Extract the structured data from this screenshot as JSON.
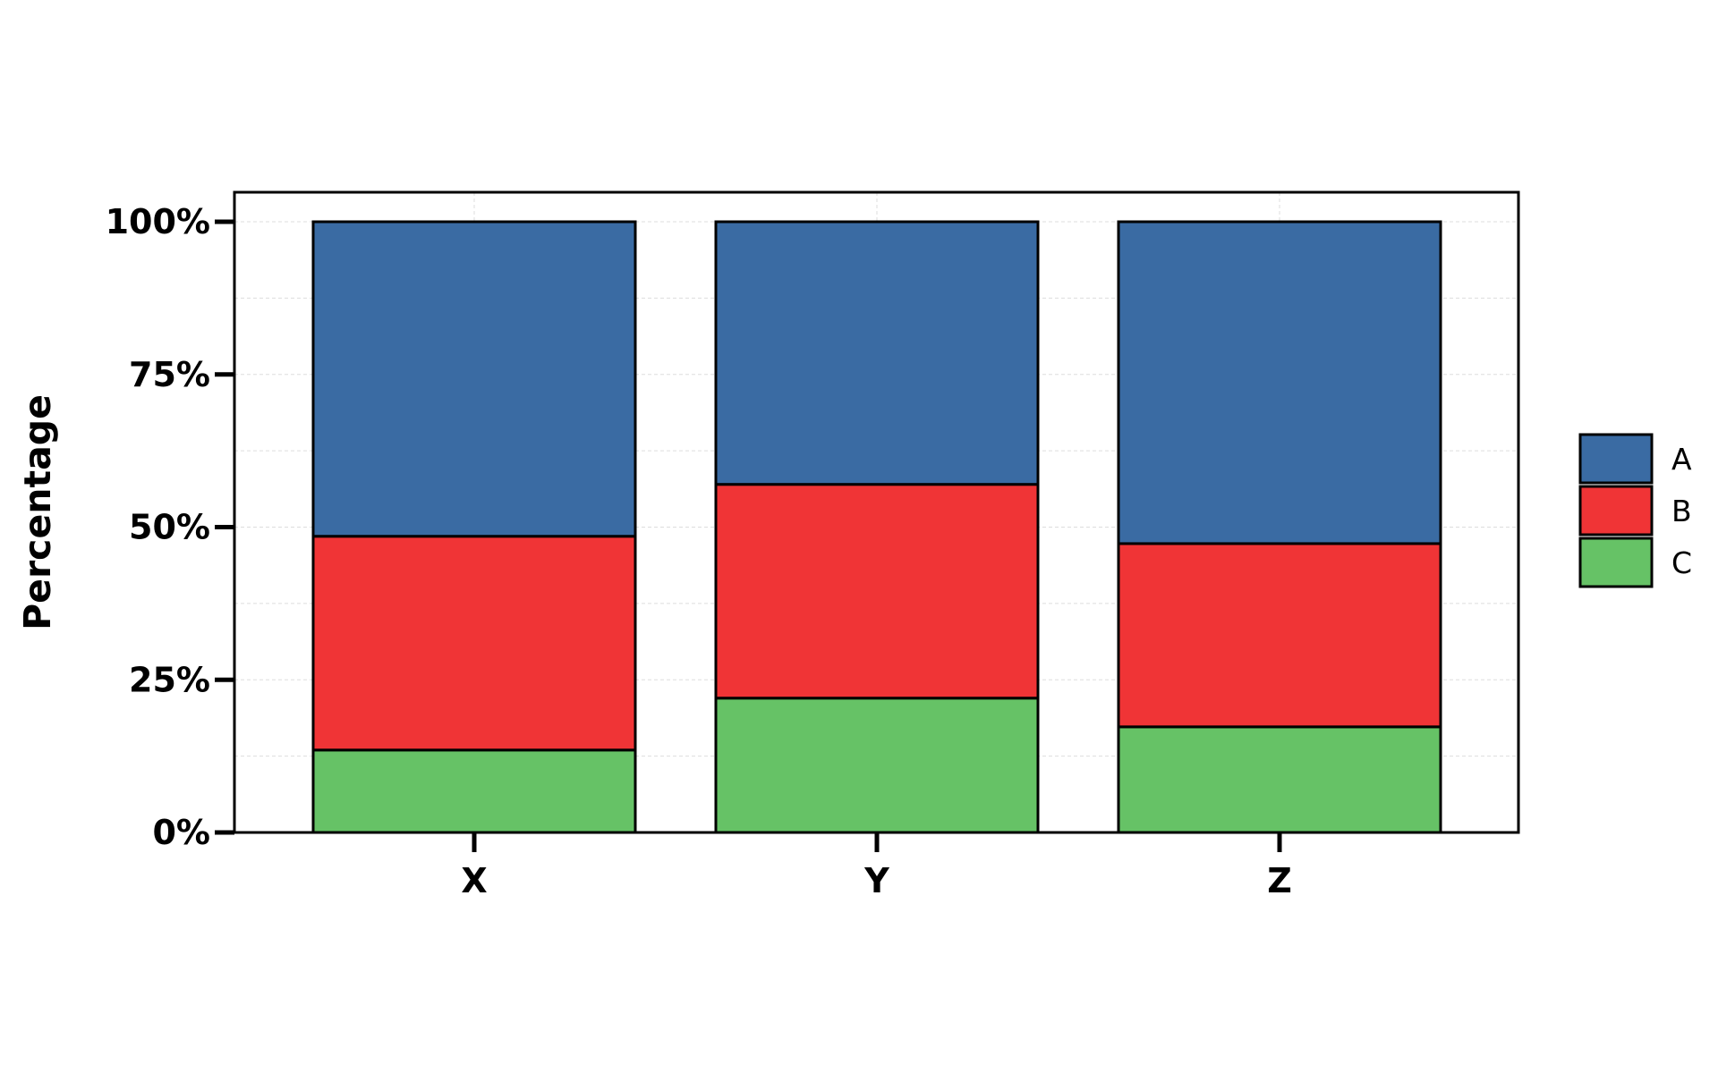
{
  "chart_data": {
    "type": "bar",
    "stacked": true,
    "normalized": true,
    "categories": [
      "X",
      "Y",
      "Z"
    ],
    "series": [
      {
        "name": "C",
        "values": [
          13.5,
          22.0,
          17.3
        ],
        "color": "#66c266"
      },
      {
        "name": "B",
        "values": [
          35.0,
          35.0,
          30.0
        ],
        "color": "#f03436"
      },
      {
        "name": "A",
        "values": [
          51.5,
          43.0,
          52.7
        ],
        "color": "#3a6ba3"
      }
    ],
    "title": "",
    "xlabel": "",
    "ylabel": "Percentage",
    "ylim": [
      0,
      100
    ],
    "yticks": [
      0,
      25,
      50,
      75,
      100
    ],
    "ytick_labels": [
      "0%",
      "25%",
      "50%",
      "75%",
      "100%"
    ],
    "legend": {
      "placement": "center-right",
      "entries": [
        "A",
        "B",
        "C"
      ]
    },
    "grid": true
  }
}
